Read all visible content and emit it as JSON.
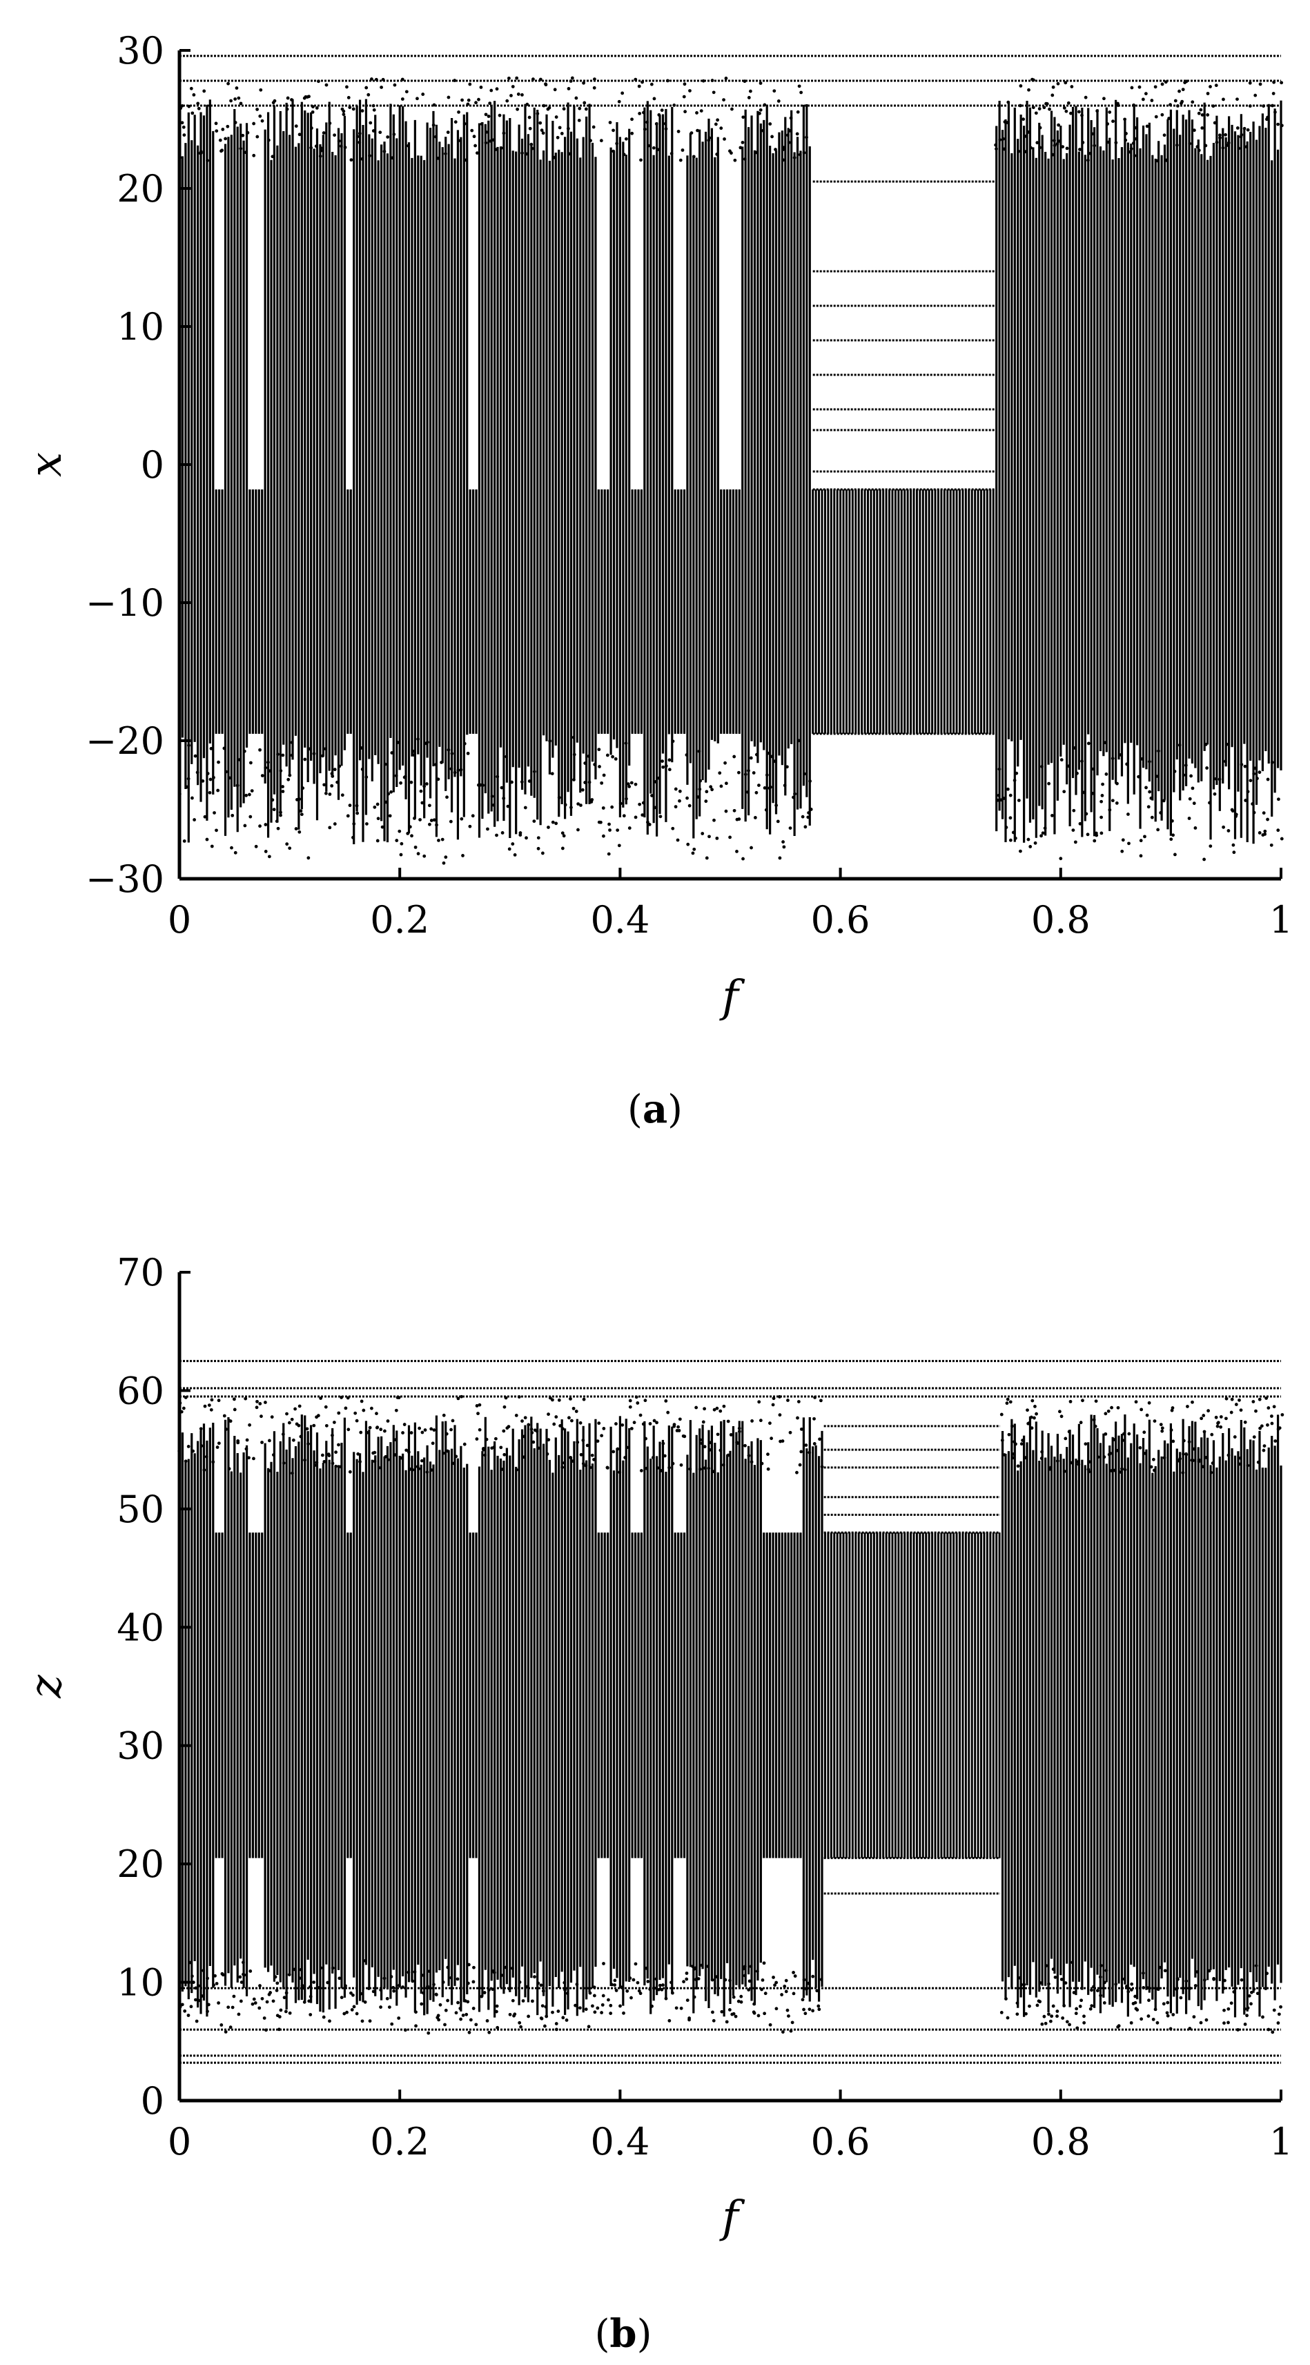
{
  "chart_data": [
    {
      "type": "scatter",
      "subplot": "bifurcation",
      "xlabel": "f",
      "ylabel": "x",
      "panel_label": {
        "open": "(",
        "letter": "a",
        "close": ")"
      },
      "xlim": [
        0,
        1
      ],
      "ylim": [
        -30,
        30
      ],
      "xticks": [
        0,
        0.2,
        0.4,
        0.6,
        0.8,
        1
      ],
      "xtick_labels": [
        "0",
        "0.2",
        "0.4",
        "0.6",
        "0.8",
        "1"
      ],
      "yticks": [
        -30,
        -20,
        -10,
        0,
        10,
        20,
        30
      ],
      "ytick_labels": [
        "−30",
        "−20",
        "−10",
        "0",
        "10",
        "20",
        "30"
      ],
      "grid": false,
      "marker_color": "#000000",
      "chaotic_band": {
        "lower_min": -27.5,
        "lower_max": -19.5,
        "upper_min": 22,
        "upper_max": 26.5,
        "floor": -1.8
      },
      "periodic_windows": [
        [
          0.575,
          0.74
        ]
      ],
      "periodic_levels": [
        -19.5,
        -1.8,
        -0.5,
        2.5,
        4,
        6.5,
        9,
        11.5,
        14,
        20.5
      ],
      "persistent_levels": [
        26,
        27.8,
        29.6
      ],
      "gap_bands": [
        [
          0.033,
          0.04
        ],
        [
          0.062,
          0.077
        ],
        [
          0.152,
          0.158
        ],
        [
          0.262,
          0.27
        ],
        [
          0.38,
          0.39
        ],
        [
          0.41,
          0.42
        ],
        [
          0.45,
          0.46
        ],
        [
          0.49,
          0.51
        ]
      ]
    },
    {
      "type": "scatter",
      "subplot": "bifurcation",
      "xlabel": "f",
      "ylabel": "z",
      "panel_label": {
        "open": "(",
        "letter": "b",
        "close": ")"
      },
      "xlim": [
        0,
        1
      ],
      "ylim": [
        0,
        70
      ],
      "xticks": [
        0,
        0.2,
        0.4,
        0.6,
        0.8,
        1
      ],
      "xtick_labels": [
        "0",
        "0.2",
        "0.4",
        "0.6",
        "0.8",
        "1"
      ],
      "yticks": [
        0,
        10,
        20,
        30,
        40,
        50,
        60,
        70
      ],
      "ytick_labels": [
        "0",
        "10",
        "20",
        "30",
        "40",
        "50",
        "60",
        "70"
      ],
      "grid": false,
      "marker_color": "#000000",
      "chaotic_band": {
        "lower_min": 7,
        "lower_max": 12,
        "upper_min": 53,
        "upper_max": 58,
        "mid_low": 20.5,
        "mid_high": 48
      },
      "periodic_windows": [
        [
          0.585,
          0.745
        ]
      ],
      "periodic_levels": [
        17.5,
        20.5,
        48,
        49.5,
        51,
        53.5,
        55,
        57
      ],
      "persistent_levels": [
        3.2,
        3.8,
        6,
        9.5,
        59.5,
        60.2,
        62.5
      ],
      "gap_bands": [
        [
          0.033,
          0.04
        ],
        [
          0.062,
          0.077
        ],
        [
          0.152,
          0.158
        ],
        [
          0.262,
          0.27
        ],
        [
          0.38,
          0.39
        ],
        [
          0.41,
          0.42
        ],
        [
          0.45,
          0.46
        ],
        [
          0.53,
          0.565
        ]
      ]
    }
  ]
}
